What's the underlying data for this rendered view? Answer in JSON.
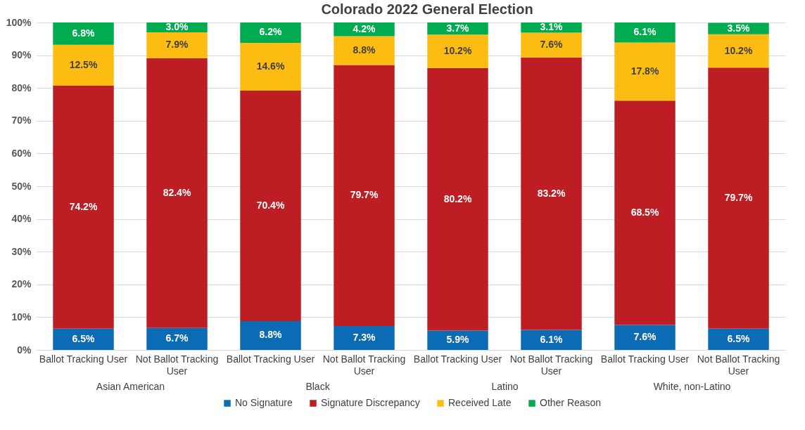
{
  "chart_data": [
    {
      "type": "other",
      "title": "Colorado 2022 General Election"
    },
    {
      "type": "bar",
      "xlabel": "Asian American",
      "categories": [
        "Ballot Tracking User",
        "Not Ballot Tracking User"
      ],
      "stacked": true,
      "ylim": [
        0,
        100
      ],
      "yticks": [
        {
          "value": 0,
          "label": "0%"
        },
        {
          "value": 10,
          "label": "10%"
        },
        {
          "value": 20,
          "label": "20%"
        },
        {
          "value": 30,
          "label": "30%"
        },
        {
          "value": 40,
          "label": "40%"
        },
        {
          "value": 50,
          "label": "50%"
        },
        {
          "value": 60,
          "label": "60%"
        },
        {
          "value": 70,
          "label": "70%"
        },
        {
          "value": 80,
          "label": "80%"
        },
        {
          "value": 90,
          "label": "90%"
        },
        {
          "value": 100,
          "label": "100%"
        }
      ],
      "grid": "y",
      "legend": "bottom",
      "series": [
        {
          "name": "No Signature",
          "color": "#0b6bb5",
          "values": [
            6.5,
            6.7
          ],
          "value_labels": [
            "6.5%",
            "6.7%"
          ]
        },
        {
          "name": "Signature Discrepancy",
          "color": "#bd1e24",
          "values": [
            74.2,
            82.4
          ],
          "value_labels": [
            "74.2%",
            "82.4%"
          ]
        },
        {
          "name": "Received Late",
          "color": "#fdbc12",
          "values": [
            12.5,
            7.9
          ],
          "value_labels": [
            "12.5%",
            "7.9%"
          ]
        },
        {
          "name": "Other Reason",
          "color": "#00ac4f",
          "values": [
            6.8,
            3.0
          ],
          "value_labels": [
            "6.8%",
            "3.0%"
          ]
        }
      ]
    },
    {
      "type": "bar",
      "xlabel": "Black",
      "categories": [
        "Ballot Tracking User",
        "Not Ballot Tracking User"
      ],
      "stacked": true,
      "ylim": [
        0,
        100
      ],
      "yticks": [
        {
          "value": 0,
          "label": null
        },
        {
          "value": 10,
          "label": null
        },
        {
          "value": 20,
          "label": null
        },
        {
          "value": 30,
          "label": null
        },
        {
          "value": 40,
          "label": null
        },
        {
          "value": 50,
          "label": null
        },
        {
          "value": 60,
          "label": null
        },
        {
          "value": 70,
          "label": null
        },
        {
          "value": 80,
          "label": null
        },
        {
          "value": 90,
          "label": null
        },
        {
          "value": 100,
          "label": null
        }
      ],
      "grid": "y",
      "legend": "bottom",
      "tick_labels": "x",
      "series": [
        {
          "name": "No Signature",
          "color": "#0b6bb5",
          "values": [
            8.8,
            7.3
          ],
          "value_labels": [
            "8.8%",
            "7.3%"
          ]
        },
        {
          "name": "Signature Discrepancy",
          "color": "#bd1e24",
          "values": [
            70.4,
            79.7
          ],
          "value_labels": [
            "70.4%",
            "79.7%"
          ]
        },
        {
          "name": "Received Late",
          "color": "#fdbc12",
          "values": [
            14.6,
            8.8
          ],
          "value_labels": [
            "14.6%",
            "8.8%"
          ]
        },
        {
          "name": "Other Reason",
          "color": "#00ac4f",
          "values": [
            6.2,
            4.2
          ],
          "value_labels": [
            "6.2%",
            "4.2%"
          ]
        }
      ]
    },
    {
      "type": "bar",
      "xlabel": "Latino",
      "categories": [
        "Ballot Tracking User",
        "Not Ballot Tracking User"
      ],
      "stacked": true,
      "ylim": [
        0,
        100
      ],
      "yticks": [
        {
          "value": 0,
          "label": null
        },
        {
          "value": 10,
          "label": null
        },
        {
          "value": 20,
          "label": null
        },
        {
          "value": 30,
          "label": null
        },
        {
          "value": 40,
          "label": null
        },
        {
          "value": 50,
          "label": null
        },
        {
          "value": 60,
          "label": null
        },
        {
          "value": 70,
          "label": null
        },
        {
          "value": 80,
          "label": null
        },
        {
          "value": 90,
          "label": null
        },
        {
          "value": 100,
          "label": null
        }
      ],
      "grid": "y",
      "legend": "bottom",
      "tick_labels": "x",
      "series": [
        {
          "name": "No Signature",
          "color": "#0b6bb5",
          "values": [
            5.9,
            6.1
          ],
          "value_labels": [
            "5.9%",
            "6.1%"
          ]
        },
        {
          "name": "Signature Discrepancy",
          "color": "#bd1e24",
          "values": [
            80.2,
            83.2
          ],
          "value_labels": [
            "80.2%",
            "83.2%"
          ]
        },
        {
          "name": "Received Late",
          "color": "#fdbc12",
          "values": [
            10.2,
            7.6
          ],
          "value_labels": [
            "10.2%",
            "7.6%"
          ]
        },
        {
          "name": "Other Reason",
          "color": "#00ac4f",
          "values": [
            3.7,
            3.1
          ],
          "value_labels": [
            "3.7%",
            "3.1%"
          ]
        }
      ]
    },
    {
      "type": "bar",
      "xlabel": "White, non-Latino",
      "categories": [
        "Ballot Tracking User",
        "Not Ballot Tracking User"
      ],
      "stacked": true,
      "ylim": [
        0,
        100
      ],
      "yticks": [
        {
          "value": 0,
          "label": null
        },
        {
          "value": 10,
          "label": null
        },
        {
          "value": 20,
          "label": null
        },
        {
          "value": 30,
          "label": null
        },
        {
          "value": 40,
          "label": null
        },
        {
          "value": 50,
          "label": null
        },
        {
          "value": 60,
          "label": null
        },
        {
          "value": 70,
          "label": null
        },
        {
          "value": 80,
          "label": null
        },
        {
          "value": 90,
          "label": null
        },
        {
          "value": 100,
          "label": null
        }
      ],
      "grid": "y",
      "legend": "bottom",
      "tick_labels": "x",
      "series": [
        {
          "name": "No Signature",
          "color": "#0b6bb5",
          "values": [
            7.6,
            6.5
          ],
          "value_labels": [
            "7.6%",
            "6.5%"
          ]
        },
        {
          "name": "Signature Discrepancy",
          "color": "#bd1e24",
          "values": [
            68.5,
            79.7
          ],
          "value_labels": [
            "68.5%",
            "79.7%"
          ]
        },
        {
          "name": "Received Late",
          "color": "#fdbc12",
          "values": [
            17.8,
            10.2
          ],
          "value_labels": [
            "17.8%",
            "10.2%"
          ]
        },
        {
          "name": "Other Reason",
          "color": "#00ac4f",
          "values": [
            6.1,
            3.5
          ],
          "value_labels": [
            "6.1%",
            "3.5%"
          ]
        }
      ]
    }
  ]
}
